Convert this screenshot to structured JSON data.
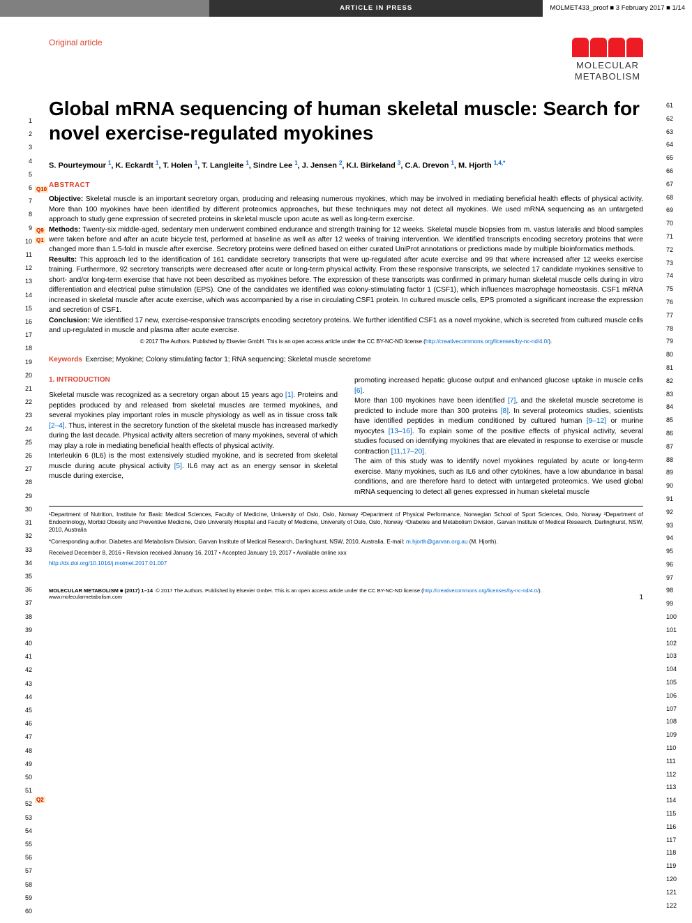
{
  "header": {
    "article_in_press": "ARTICLE IN PRESS",
    "proof_info": "MOLMET433_proof ■ 3 February 2017 ■ 1/14"
  },
  "logo": {
    "bar_colors": [
      "#ed1c24",
      "#ed1c24",
      "#ed1c24",
      "#ed1c24"
    ],
    "line1": "MOLECULAR",
    "line2": "METABOLISM"
  },
  "article_type": "Original article",
  "title": "Global mRNA sequencing of human skeletal muscle: Search for novel exercise-regulated myokines",
  "authors_html": "S. Pourteymour <sup>1</sup>, K. Eckardt <sup>1</sup>, T. Holen <sup>1</sup>, T. Langleite <sup>1</sup>, Sindre Lee <sup>1</sup>, J. Jensen <sup>2</sup>, K.I. Birkeland <sup>3</sup>, C.A. Drevon <sup>1</sup>, M. Hjorth <sup>1,4,*</sup>",
  "q_markers": {
    "q10": "Q10",
    "q9": "Q9",
    "q1": "Q1",
    "q2": "Q2"
  },
  "abstract": {
    "heading": "ABSTRACT",
    "objective_label": "Objective:",
    "objective": "Skeletal muscle is an important secretory organ, producing and releasing numerous myokines, which may be involved in mediating beneficial health effects of physical activity. More than 100 myokines have been identified by different proteomics approaches, but these techniques may not detect all myokines. We used mRNA sequencing as an untargeted approach to study gene expression of secreted proteins in skeletal muscle upon acute as well as long-term exercise.",
    "methods_label": "Methods:",
    "methods": "Twenty-six middle-aged, sedentary men underwent combined endurance and strength training for 12 weeks. Skeletal muscle biopsies from m. vastus lateralis and blood samples were taken before and after an acute bicycle test, performed at baseline as well as after 12 weeks of training intervention. We identified transcripts encoding secretory proteins that were changed more than 1.5-fold in muscle after exercise. Secretory proteins were defined based on either curated UniProt annotations or predictions made by multiple bioinformatics methods.",
    "results_label": "Results:",
    "results": "This approach led to the identification of 161 candidate secretory transcripts that were up-regulated after acute exercise and 99 that where increased after 12 weeks exercise training. Furthermore, 92 secretory transcripts were decreased after acute or long-term physical activity. From these responsive transcripts, we selected 17 candidate myokines sensitive to short- and/or long-term exercise that have not been described as myokines before. The expression of these transcripts was confirmed in primary human skeletal muscle cells during in vitro differentiation and electrical pulse stimulation (EPS). One of the candidates we identified was colony-stimulating factor 1 (CSF1), which influences macrophage homeostasis. CSF1 mRNA increased in skeletal muscle after acute exercise, which was accompanied by a rise in circulating CSF1 protein. In cultured muscle cells, EPS promoted a significant increase the expression and secretion of CSF1.",
    "conclusion_label": "Conclusion:",
    "conclusion": "We identified 17 new, exercise-responsive transcripts encoding secretory proteins. We further identified CSF1 as a novel myokine, which is secreted from cultured muscle cells and up-regulated in muscle and plasma after acute exercise.",
    "copyright": "© 2017 The Authors. Published by Elsevier GmbH. This is an open access article under the CC BY-NC-ND license (",
    "cc_link": "http://creativecommons.org/licenses/by-nc-nd/4.0/",
    "copyright_close": ")."
  },
  "keywords": {
    "label": "Keywords",
    "text": "Exercise; Myokine; Colony stimulating factor 1; RNA sequencing; Skeletal muscle secretome"
  },
  "intro": {
    "heading": "1. INTRODUCTION",
    "col1_p1": "Skeletal muscle was recognized as a secretory organ about 15 years ago [1]. Proteins and peptides produced by and released from skeletal muscles are termed myokines, and several myokines play important roles in muscle physiology as well as in tissue cross talk [2–4]. Thus, interest in the secretory function of the skeletal muscle has increased markedly during the last decade. Physical activity alters secretion of many myokines, several of which may play a role in mediating beneficial health effects of physical activity.",
    "col1_p2": "Interleukin 6 (IL6) is the most extensively studied myokine, and is secreted from skeletal muscle during acute physical activity [5]. IL6 may act as an energy sensor in skeletal muscle during exercise,",
    "col2_p1": "promoting increased hepatic glucose output and enhanced glucose uptake in muscle cells [6].",
    "col2_p2": "More than 100 myokines have been identified [7], and the skeletal muscle secretome is predicted to include more than 300 proteins [8]. In several proteomics studies, scientists have identified peptides in medium conditioned by cultured human [9–12] or murine myocytes [13–16]. To explain some of the positive effects of physical activity, several studies focused on identifying myokines that are elevated in response to exercise or muscle contraction [11,17–20].",
    "col2_p3": "The aim of this study was to identify novel myokines regulated by acute or long-term exercise. Many myokines, such as IL6 and other cytokines, have a low abundance in basal conditions, and are therefore hard to detect with untargeted proteomics. We used global mRNA sequencing to detect all genes expressed in human skeletal muscle"
  },
  "affiliations": "¹Department of Nutrition, Institute for Basic Medical Sciences, Faculty of Medicine, University of Oslo, Oslo, Norway ²Department of Physical Performance, Norwegian School of Sport Sciences, Oslo, Norway ³Department of Endocrinology, Morbid Obesity and Preventive Medicine, Oslo University Hospital and Faculty of Medicine, University of Oslo, Oslo, Norway ⁴Diabetes and Metabolism Division, Garvan Institute of Medical Research, Darlinghurst, NSW, 2010, Australia",
  "corresponding": {
    "prefix": "*Corresponding author. Diabetes and Metabolism Division, Garvan Institute of Medical Research, Darlinghurst, NSW, 2010, Australia. E-mail: ",
    "email": "m.hjorth@garvan.org.au",
    "suffix": " (M. Hjorth)."
  },
  "dates": "Received December 8, 2016 • Revision received January 16, 2017 • Accepted January 19, 2017 • Available online xxx",
  "doi": "http://dx.doi.org/10.1016/j.molmet.2017.01.007",
  "footer": {
    "journal": "MOLECULAR METABOLISM ■ (2017) 1–14",
    "text": "© 2017 The Authors. Published by Elsevier GmbH. This is an open access article under the CC BY-NC-ND license (",
    "link": "http://creativecommons.org/licenses/by-nc-nd/4.0/",
    "close": ").",
    "url": "www.molecularmetabolism.com",
    "page": "1"
  },
  "line_numbers": {
    "left_start": 1,
    "left_end": 60,
    "right_start": 61,
    "right_end": 122
  },
  "colors": {
    "accent": "#d9432f",
    "link": "#0066cc",
    "header_dark": "#333333",
    "header_gray": "#808080",
    "logo_red": "#ed1c24"
  }
}
